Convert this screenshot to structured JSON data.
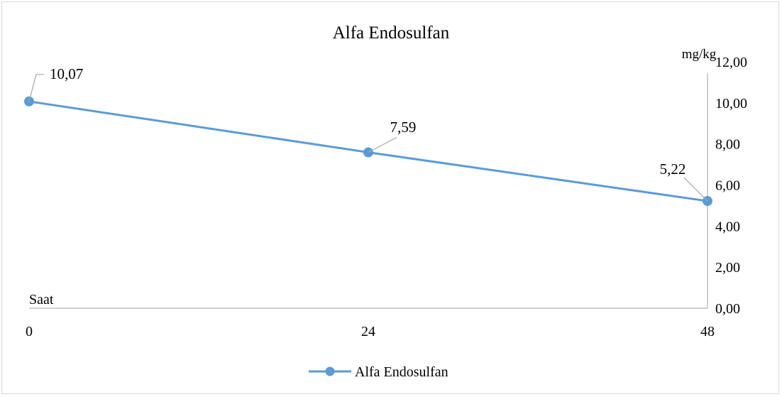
{
  "chart_data": {
    "type": "line",
    "title": "Alfa Endosulfan",
    "xlabel": "Saat",
    "ylabel": "mg/kg",
    "x": [
      0,
      24,
      48
    ],
    "categories": [
      "0",
      "24",
      "48"
    ],
    "series": [
      {
        "name": "Alfa Endosulfan",
        "values": [
          10.07,
          7.59,
          5.22
        ],
        "labels": [
          "10,07",
          "7,59",
          "5,22"
        ]
      }
    ],
    "ylim": [
      0,
      12
    ],
    "xlim": [
      0,
      48
    ],
    "y_ticks": [
      "0,00",
      "2,00",
      "4,00",
      "6,00",
      "8,00",
      "10,00",
      "12,00"
    ],
    "y_axis_side": "right",
    "grid": false,
    "legend": "bottom",
    "colors": {
      "series": "#5b9bd5",
      "axis": "#bfbfbf",
      "leader": "#a6a6a6",
      "text": "#000000"
    }
  }
}
